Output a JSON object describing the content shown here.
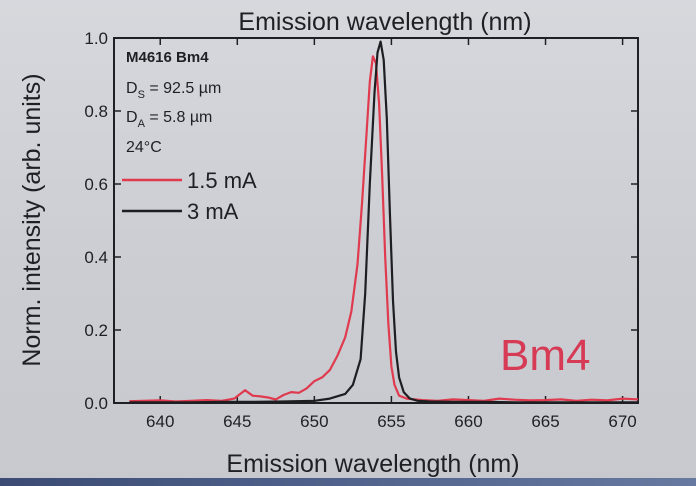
{
  "chart_data": {
    "type": "line",
    "title": "Emission wavelength (nm)",
    "xlabel": "Emission wavelength (nm)",
    "ylabel": "Norm. intensity (arb. units)",
    "xlim": [
      637,
      671
    ],
    "ylim": [
      0,
      1.0
    ],
    "x_ticks": [
      640,
      645,
      650,
      655,
      660,
      665,
      670
    ],
    "y_ticks": [
      "0.0",
      "0.2",
      "0.4",
      "0.6",
      "0.8",
      "1.0"
    ],
    "x_tick_labels": [
      "640",
      "645",
      "650",
      "655",
      "660",
      "665",
      "670"
    ],
    "y_tick_labels": [
      "0.0",
      "0.2",
      "0.4",
      "0.6",
      "0.8",
      "1.0"
    ],
    "grid": false,
    "legend_position": "top-left",
    "annotations": {
      "device": "M4616 Bm4",
      "ds_symbol": "D",
      "ds_subscript": "S",
      "ds_value": " = 92.5 µm",
      "da_symbol": "D",
      "da_subscript": "A",
      "da_value": " = 5.8 µm",
      "temperature": "24°C",
      "mode_label": "Bm4"
    },
    "series": [
      {
        "name": "1.5 mA",
        "color": "#e03a4e",
        "x": [
          638,
          640,
          641,
          642,
          643,
          644,
          644.8,
          645.5,
          646,
          646.5,
          647,
          647.5,
          648,
          648.5,
          649,
          649.5,
          650,
          650.5,
          651,
          651.5,
          652,
          652.4,
          652.8,
          653.1,
          653.4,
          653.6,
          653.8,
          654.0,
          654.2,
          654.4,
          654.6,
          654.8,
          655.0,
          655.2,
          655.5,
          656,
          656.5,
          657,
          658,
          659,
          660,
          661,
          662,
          663,
          664,
          665,
          666,
          667,
          668,
          669,
          670,
          671
        ],
        "y": [
          0.005,
          0.007,
          0.004,
          0.006,
          0.008,
          0.006,
          0.012,
          0.035,
          0.02,
          0.018,
          0.015,
          0.01,
          0.022,
          0.03,
          0.028,
          0.04,
          0.06,
          0.07,
          0.09,
          0.13,
          0.18,
          0.25,
          0.38,
          0.55,
          0.75,
          0.88,
          0.95,
          0.93,
          0.82,
          0.62,
          0.4,
          0.22,
          0.1,
          0.05,
          0.02,
          0.012,
          0.01,
          0.008,
          0.006,
          0.01,
          0.008,
          0.006,
          0.012,
          0.009,
          0.007,
          0.008,
          0.01,
          0.006,
          0.009,
          0.007,
          0.012,
          0.01
        ]
      },
      {
        "name": "3 mA",
        "color": "#1e1e22",
        "x": [
          638,
          640,
          642,
          644,
          646,
          648,
          650,
          651,
          652,
          652.5,
          653,
          653.3,
          653.6,
          653.9,
          654.1,
          654.3,
          654.5,
          654.7,
          654.9,
          655.1,
          655.3,
          655.5,
          655.8,
          656.2,
          656.7,
          657.5,
          659,
          661,
          663,
          665,
          667,
          669,
          671
        ],
        "y": [
          0.002,
          0.002,
          0.002,
          0.003,
          0.003,
          0.004,
          0.006,
          0.012,
          0.025,
          0.05,
          0.12,
          0.3,
          0.6,
          0.85,
          0.96,
          0.99,
          0.94,
          0.78,
          0.52,
          0.28,
          0.14,
          0.07,
          0.03,
          0.012,
          0.006,
          0.004,
          0.003,
          0.003,
          0.002,
          0.002,
          0.002,
          0.002,
          0.002
        ]
      }
    ]
  }
}
